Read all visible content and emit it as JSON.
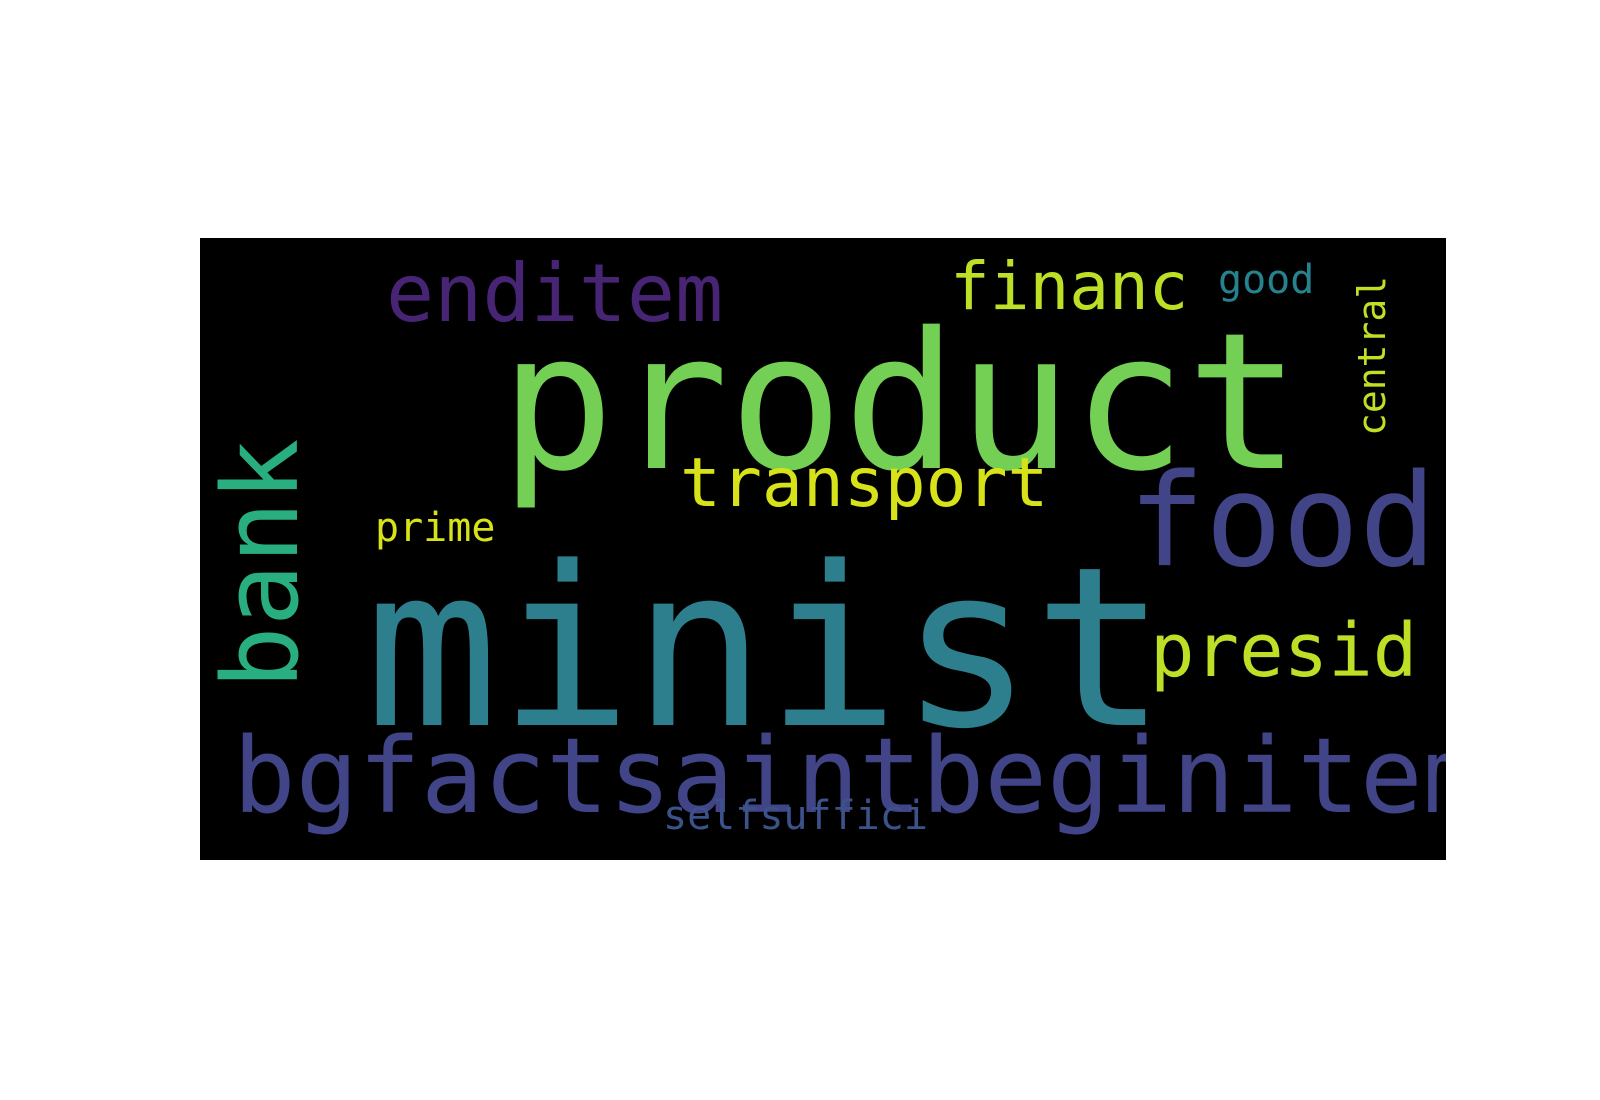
{
  "wordcloud": {
    "background": "#000000",
    "words": [
      {
        "text": "minist",
        "color": "#2d7f8e",
        "orientation": "horizontal"
      },
      {
        "text": "product",
        "color": "#73d055",
        "orientation": "horizontal"
      },
      {
        "text": "bgfactsaintbeginitem",
        "color": "#414487",
        "orientation": "horizontal"
      },
      {
        "text": "food",
        "color": "#414487",
        "orientation": "horizontal"
      },
      {
        "text": "bank",
        "color": "#29af7f",
        "orientation": "vertical"
      },
      {
        "text": "enditem",
        "color": "#482475",
        "orientation": "horizontal"
      },
      {
        "text": "presid",
        "color": "#bddf26",
        "orientation": "horizontal"
      },
      {
        "text": "transport",
        "color": "#d8e219",
        "orientation": "horizontal"
      },
      {
        "text": "financ",
        "color": "#bddf26",
        "orientation": "horizontal"
      },
      {
        "text": "good",
        "color": "#26828e",
        "orientation": "horizontal"
      },
      {
        "text": "central",
        "color": "#c0df25",
        "orientation": "vertical"
      },
      {
        "text": "prime",
        "color": "#d8e219",
        "orientation": "horizontal"
      },
      {
        "text": "selfsuffici",
        "color": "#3b528b",
        "orientation": "horizontal"
      }
    ]
  }
}
